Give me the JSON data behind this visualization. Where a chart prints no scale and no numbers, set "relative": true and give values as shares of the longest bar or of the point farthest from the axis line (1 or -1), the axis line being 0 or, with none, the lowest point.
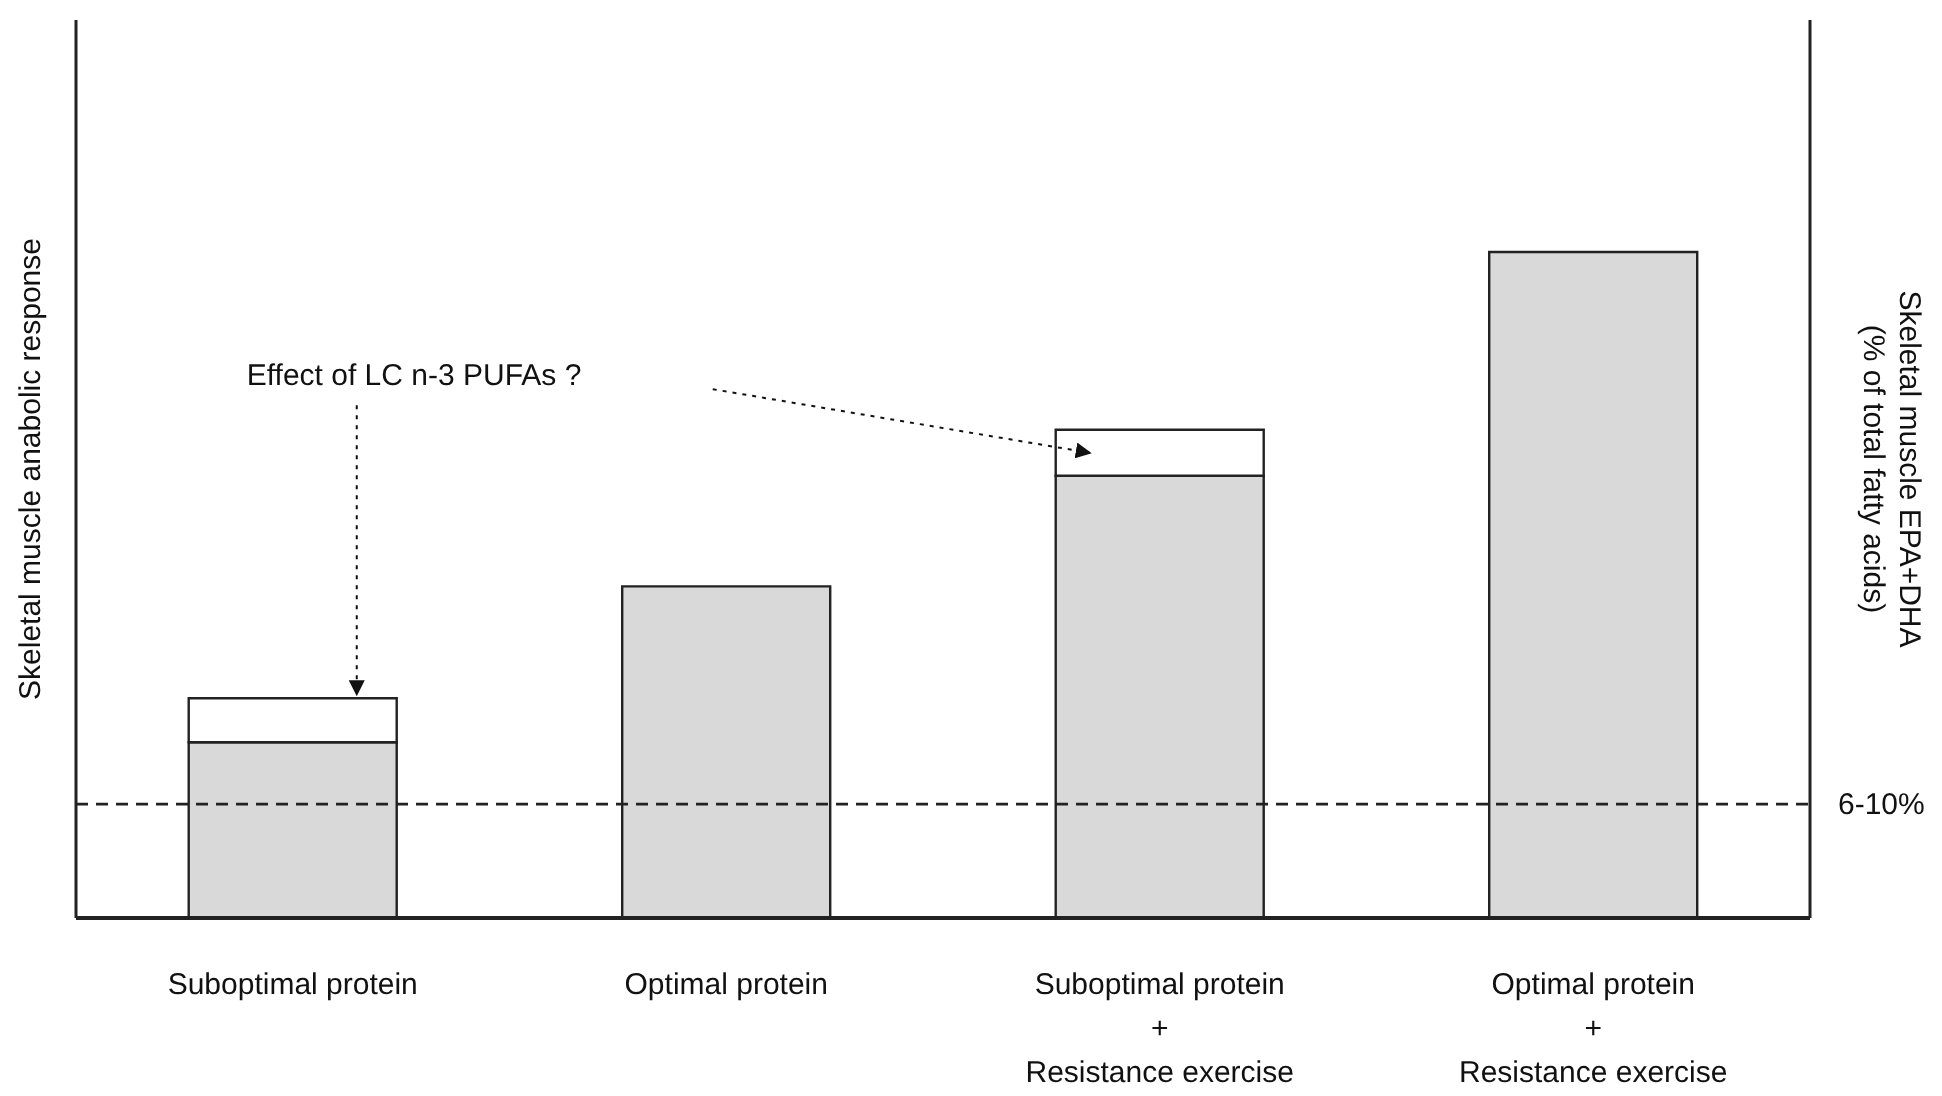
{
  "chart_data": {
    "type": "bar",
    "relative": true,
    "stacked": true,
    "ylabel": "Skeletal muscle anabolic response",
    "y2label": "Skeletal muscle EPA+DHA\n(% of total fatty acids)",
    "categories": [
      "Suboptimal protein",
      "Optimal protein",
      "Suboptimal protein\n+\nResistance exercise",
      "Optimal protein\n+\nResistance exercise"
    ],
    "series": [
      {
        "color": "#d9d9d9",
        "values": [
          0.264,
          0.498,
          0.664,
          1
        ]
      },
      {
        "color": "#ffffff",
        "values": [
          0.066,
          null,
          0.069,
          null
        ]
      }
    ],
    "ref_lines": [
      {
        "axis": "y",
        "value": 0.171,
        "line_style": "dashed"
      }
    ],
    "annotations": [
      "Effect of LC n-3 PUFAs ?",
      "6-10%"
    ],
    "grid": false,
    "legend": false
  }
}
